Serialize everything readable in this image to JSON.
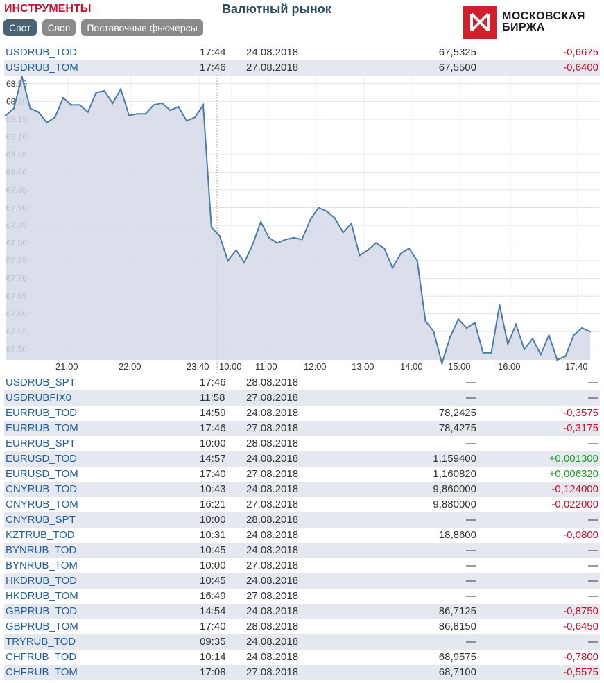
{
  "header": {
    "instruments_label": "ИНСТРУМЕНТЫ",
    "market_title": "Валютный рынок",
    "logo_line1": "МОСКОВСКАЯ",
    "logo_line2": "БИРЖА"
  },
  "tabs": [
    {
      "label": "Спот",
      "active": true
    },
    {
      "label": "Своп",
      "active": false
    },
    {
      "label": "Поставочные фьючерсы",
      "active": false
    }
  ],
  "top_rows": [
    {
      "name": "USDRUB_TOD",
      "time": "17:44",
      "date": "24.08.2018",
      "price": "67,5325",
      "change": "-0,6675"
    },
    {
      "name": "USDRUB_TOM",
      "time": "17:46",
      "date": "27.08.2018",
      "price": "67,5500",
      "change": "-0,6400"
    }
  ],
  "chart_data": {
    "type": "area",
    "y_ticks": [
      "68.25",
      "68.20",
      "68.15",
      "68.10",
      "68.05",
      "68.00",
      "67.95",
      "67.90",
      "67.85",
      "67.80",
      "67.75",
      "67.70",
      "67.65",
      "67.60",
      "67.55",
      "67.50"
    ],
    "ylim": [
      67.47,
      68.275
    ],
    "x_ticks": [
      "21:00",
      "22:00",
      "23:40",
      "10:00",
      "11:00",
      "12:00",
      "13:00",
      "14:00",
      "15:00",
      "16:00",
      "17:40"
    ],
    "values": [
      68.16,
      68.18,
      68.27,
      68.18,
      68.17,
      68.14,
      68.155,
      68.21,
      68.19,
      68.19,
      68.17,
      68.225,
      68.23,
      68.195,
      68.235,
      68.16,
      68.165,
      68.165,
      68.19,
      68.195,
      68.175,
      68.185,
      68.145,
      68.155,
      68.19,
      67.845,
      67.82,
      67.75,
      67.78,
      67.745,
      67.795,
      67.86,
      67.815,
      67.8,
      67.81,
      67.815,
      67.81,
      67.865,
      67.9,
      67.89,
      67.87,
      67.83,
      67.855,
      67.765,
      67.78,
      67.8,
      67.785,
      67.73,
      67.77,
      67.785,
      67.75,
      67.58,
      67.55,
      67.46,
      67.535,
      67.585,
      67.56,
      67.575,
      67.49,
      67.49,
      67.625,
      67.515,
      67.57,
      67.5,
      67.53,
      67.485,
      67.54,
      67.47,
      67.48,
      67.54,
      67.56,
      67.55
    ],
    "grid": true,
    "session_break_after_tick": "23:40"
  },
  "rows": [
    {
      "name": "USDRUB_SPT",
      "time": "17:46",
      "date": "28.08.2018",
      "price": "—",
      "change": "—"
    },
    {
      "name": "USDRUBFIX0",
      "time": "11:58",
      "date": "27.08.2018",
      "price": "—",
      "change": "—"
    },
    {
      "name": "EURRUB_TOD",
      "time": "14:59",
      "date": "24.08.2018",
      "price": "78,2425",
      "change": "-0,3575"
    },
    {
      "name": "EURRUB_TOM",
      "time": "17:46",
      "date": "27.08.2018",
      "price": "78,4275",
      "change": "-0,3175"
    },
    {
      "name": "EURRUB_SPT",
      "time": "10:00",
      "date": "28.08.2018",
      "price": "—",
      "change": "—"
    },
    {
      "name": "EURUSD_TOD",
      "time": "14:57",
      "date": "24.08.2018",
      "price": "1,159400",
      "change": "+0,001300"
    },
    {
      "name": "EURUSD_TOM",
      "time": "17:40",
      "date": "27.08.2018",
      "price": "1,160820",
      "change": "+0,006320"
    },
    {
      "name": "CNYRUB_TOD",
      "time": "10:43",
      "date": "24.08.2018",
      "price": "9,860000",
      "change": "-0,124000"
    },
    {
      "name": "CNYRUB_TOM",
      "time": "16:21",
      "date": "27.08.2018",
      "price": "9,880000",
      "change": "-0,022000"
    },
    {
      "name": "CNYRUB_SPT",
      "time": "10:00",
      "date": "28.08.2018",
      "price": "—",
      "change": "—"
    },
    {
      "name": "KZTRUB_TOD",
      "time": "10:31",
      "date": "24.08.2018",
      "price": "18,8600",
      "change": "-0,0800"
    },
    {
      "name": "BYNRUB_TOD",
      "time": "10:45",
      "date": "24.08.2018",
      "price": "—",
      "change": "—"
    },
    {
      "name": "BYNRUB_TOM",
      "time": "10:00",
      "date": "27.08.2018",
      "price": "—",
      "change": "—"
    },
    {
      "name": "HKDRUB_TOD",
      "time": "10:45",
      "date": "24.08.2018",
      "price": "—",
      "change": "—"
    },
    {
      "name": "HKDRUB_TOM",
      "time": "16:49",
      "date": "27.08.2018",
      "price": "—",
      "change": "—"
    },
    {
      "name": "GBPRUB_TOD",
      "time": "14:54",
      "date": "24.08.2018",
      "price": "86,7125",
      "change": "-0,8750"
    },
    {
      "name": "GBPRUB_TOM",
      "time": "17:40",
      "date": "28.08.2018",
      "price": "86,8150",
      "change": "-0,6450"
    },
    {
      "name": "TRYRUB_TOD",
      "time": "09:35",
      "date": "24.08.2018",
      "price": "—",
      "change": "—"
    },
    {
      "name": "CHFRUB_TOD",
      "time": "10:14",
      "date": "24.08.2018",
      "price": "68,9575",
      "change": "-0,7800"
    },
    {
      "name": "CHFRUB_TOM",
      "time": "17:08",
      "date": "27.08.2018",
      "price": "68,7100",
      "change": "-0,5575"
    }
  ],
  "colors": {
    "accent_red": "#c8102e",
    "positive_green": "#1c9a1c",
    "link_blue": "#1f5fa0",
    "chart_line": "#4a7ca8",
    "chart_fill": "#d4d9e8"
  }
}
